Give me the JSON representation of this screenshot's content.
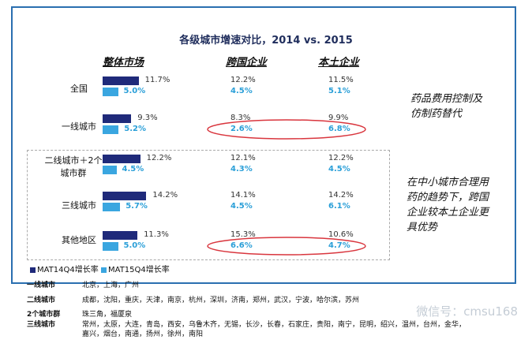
{
  "chart_data": {
    "type": "bar",
    "title": "各级城市增速对比，2014 vs. 2015",
    "panels": [
      "整体市场",
      "跨国企业",
      "本土企业"
    ],
    "categories": [
      "全国",
      "一线城市",
      "二线城市＋2个城市群",
      "三线城市",
      "其他地区"
    ],
    "series": [
      {
        "name": "MAT14Q4增长率",
        "color": "#1f2a7a",
        "overall": [
          11.7,
          9.3,
          12.2,
          14.2,
          11.3
        ],
        "multinational": [
          12.2,
          8.3,
          12.1,
          14.1,
          15.3
        ],
        "local": [
          11.5,
          9.9,
          12.2,
          14.2,
          10.6
        ]
      },
      {
        "name": "MAT15Q4增长率",
        "color": "#3aa6e0",
        "overall": [
          5.0,
          5.2,
          4.5,
          5.7,
          5.0
        ],
        "multinational": [
          4.5,
          2.6,
          4.3,
          4.5,
          6.6
        ],
        "local": [
          5.1,
          6.8,
          4.5,
          6.1,
          4.7
        ]
      }
    ],
    "labels": {
      "overall14": [
        "11.7%",
        "9.3%",
        "12.2%",
        "14.2%",
        "11.3%"
      ],
      "overall15": [
        "5.0%",
        "5.2%",
        "4.5%",
        "5.7%",
        "5.0%"
      ],
      "multi14": [
        "12.2%",
        "8.3%",
        "12.1%",
        "14.1%",
        "15.3%"
      ],
      "multi15": [
        "4.5%",
        "2.6%",
        "4.3%",
        "4.5%",
        "6.6%"
      ],
      "local14": [
        "11.5%",
        "9.9%",
        "12.2%",
        "14.2%",
        "10.6%"
      ],
      "local15": [
        "5.1%",
        "6.8%",
        "4.5%",
        "6.1%",
        "4.7%"
      ]
    },
    "annotations": [
      "药品费用控制及仿制药替代",
      "在中小城市合理用药的趋势下，跨国企业较本土企业更具优势"
    ],
    "highlight_color": "#d9363e",
    "legend": "bottom-left"
  },
  "header": {
    "title": "各级城市增速对比，2014 vs. 2015",
    "col_overall": "整体市场",
    "col_multi": "跨国企业",
    "col_local": "本土企业"
  },
  "rows": {
    "r0": "全国",
    "r1": "一线城市",
    "r2a": "二线城市＋2个",
    "r2b": "城市群",
    "r3": "三线城市",
    "r4": "其他地区"
  },
  "annotations": {
    "a1_line1": "药品费用控制及",
    "a1_line2": "仿制药替代",
    "a2_line1": "在中小城市合理用",
    "a2_line2": "药的趋势下，跨国",
    "a2_line3": "企业较本土企业更",
    "a2_line4": "具优势"
  },
  "legend": {
    "mat14": "MAT14Q4增长率",
    "mat15": "MAT15Q4增长率"
  },
  "tiers": [
    {
      "name": "一线城市",
      "cities": "北京，上海，广州"
    },
    {
      "name": "二线城市",
      "cities": "成都，沈阳，重庆，天津，南京，杭州，深圳，济南，郑州，武汉，宁波，哈尔滨，苏州"
    },
    {
      "name": "2个城市群",
      "cities": "珠三角，福厦泉"
    },
    {
      "name": "三线城市",
      "cities": "常州，太原，大连，青岛，西安，乌鲁木齐，无锡，长沙，长春，石家庄，贵阳，南宁，昆明，绍兴，温州，台州，金华，"
    },
    {
      "name": "",
      "cities": "嘉兴，烟台，南通，扬州，徐州，南阳"
    }
  ],
  "watermark": "微信号：cmsu168"
}
